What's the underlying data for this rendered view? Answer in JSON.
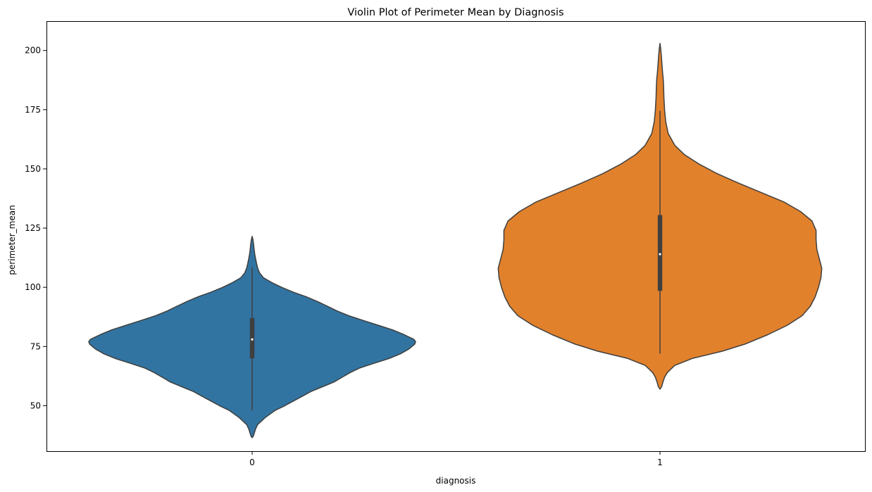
{
  "chart_data": {
    "type": "violin",
    "title": "Violin Plot of Perimeter Mean by Diagnosis",
    "xlabel": "diagnosis",
    "ylabel": "perimeter_mean",
    "ylim": [
      30.8,
      212.4
    ],
    "yticks": [
      50,
      75,
      100,
      125,
      150,
      175,
      200
    ],
    "grid": false,
    "categories": [
      "0",
      "1"
    ],
    "series": [
      {
        "category": "0",
        "color": "#3274a1",
        "min": 48,
        "q1": 70,
        "median": 78,
        "q3": 87,
        "max": 108.5,
        "kde_range": [
          36.5,
          121.5
        ],
        "density": [
          [
            36.5,
            0.0
          ],
          [
            37,
            0.006
          ],
          [
            38,
            0.011
          ],
          [
            40,
            0.02
          ],
          [
            42,
            0.033
          ],
          [
            45,
            0.08
          ],
          [
            48,
            0.14
          ],
          [
            50,
            0.2
          ],
          [
            53,
            0.28
          ],
          [
            56,
            0.36
          ],
          [
            58,
            0.43
          ],
          [
            60,
            0.5
          ],
          [
            62,
            0.55
          ],
          [
            64,
            0.6
          ],
          [
            66,
            0.66
          ],
          [
            68,
            0.75
          ],
          [
            70,
            0.84
          ],
          [
            72,
            0.91
          ],
          [
            74,
            0.96
          ],
          [
            76,
            0.995
          ],
          [
            77,
            1.0
          ],
          [
            78,
            0.99
          ],
          [
            80,
            0.93
          ],
          [
            82,
            0.86
          ],
          [
            84,
            0.77
          ],
          [
            86,
            0.68
          ],
          [
            88,
            0.59
          ],
          [
            90,
            0.52
          ],
          [
            92,
            0.46
          ],
          [
            94,
            0.4
          ],
          [
            96,
            0.33
          ],
          [
            98,
            0.25
          ],
          [
            100,
            0.18
          ],
          [
            102,
            0.12
          ],
          [
            104,
            0.07
          ],
          [
            106,
            0.046
          ],
          [
            108,
            0.034
          ],
          [
            110,
            0.027
          ],
          [
            112,
            0.021
          ],
          [
            114,
            0.016
          ],
          [
            116,
            0.012
          ],
          [
            118,
            0.009
          ],
          [
            120,
            0.005
          ],
          [
            121.5,
            0.0
          ]
        ]
      },
      {
        "category": "1",
        "color": "#e1812c",
        "min": 72,
        "q1": 98.5,
        "median": 114,
        "q3": 130.5,
        "max": 174.5,
        "kde_range": [
          57,
          203
        ],
        "density": [
          [
            57,
            0.0
          ],
          [
            58,
            0.01
          ],
          [
            60,
            0.018
          ],
          [
            62,
            0.028
          ],
          [
            64,
            0.045
          ],
          [
            67,
            0.09
          ],
          [
            70,
            0.2
          ],
          [
            73,
            0.38
          ],
          [
            76,
            0.52
          ],
          [
            80,
            0.66
          ],
          [
            84,
            0.78
          ],
          [
            88,
            0.87
          ],
          [
            92,
            0.92
          ],
          [
            96,
            0.95
          ],
          [
            100,
            0.97
          ],
          [
            104,
            0.985
          ],
          [
            108,
            0.99
          ],
          [
            112,
            0.975
          ],
          [
            116,
            0.96
          ],
          [
            120,
            0.955
          ],
          [
            124,
            0.955
          ],
          [
            128,
            0.93
          ],
          [
            132,
            0.86
          ],
          [
            136,
            0.76
          ],
          [
            140,
            0.62
          ],
          [
            144,
            0.48
          ],
          [
            148,
            0.35
          ],
          [
            152,
            0.24
          ],
          [
            156,
            0.15
          ],
          [
            160,
            0.09
          ],
          [
            165,
            0.05
          ],
          [
            170,
            0.035
          ],
          [
            175,
            0.028
          ],
          [
            180,
            0.024
          ],
          [
            185,
            0.022
          ],
          [
            188,
            0.02
          ],
          [
            190,
            0.017
          ],
          [
            194,
            0.012
          ],
          [
            198,
            0.008
          ],
          [
            201,
            0.004
          ],
          [
            203,
            0.0
          ]
        ]
      }
    ]
  }
}
